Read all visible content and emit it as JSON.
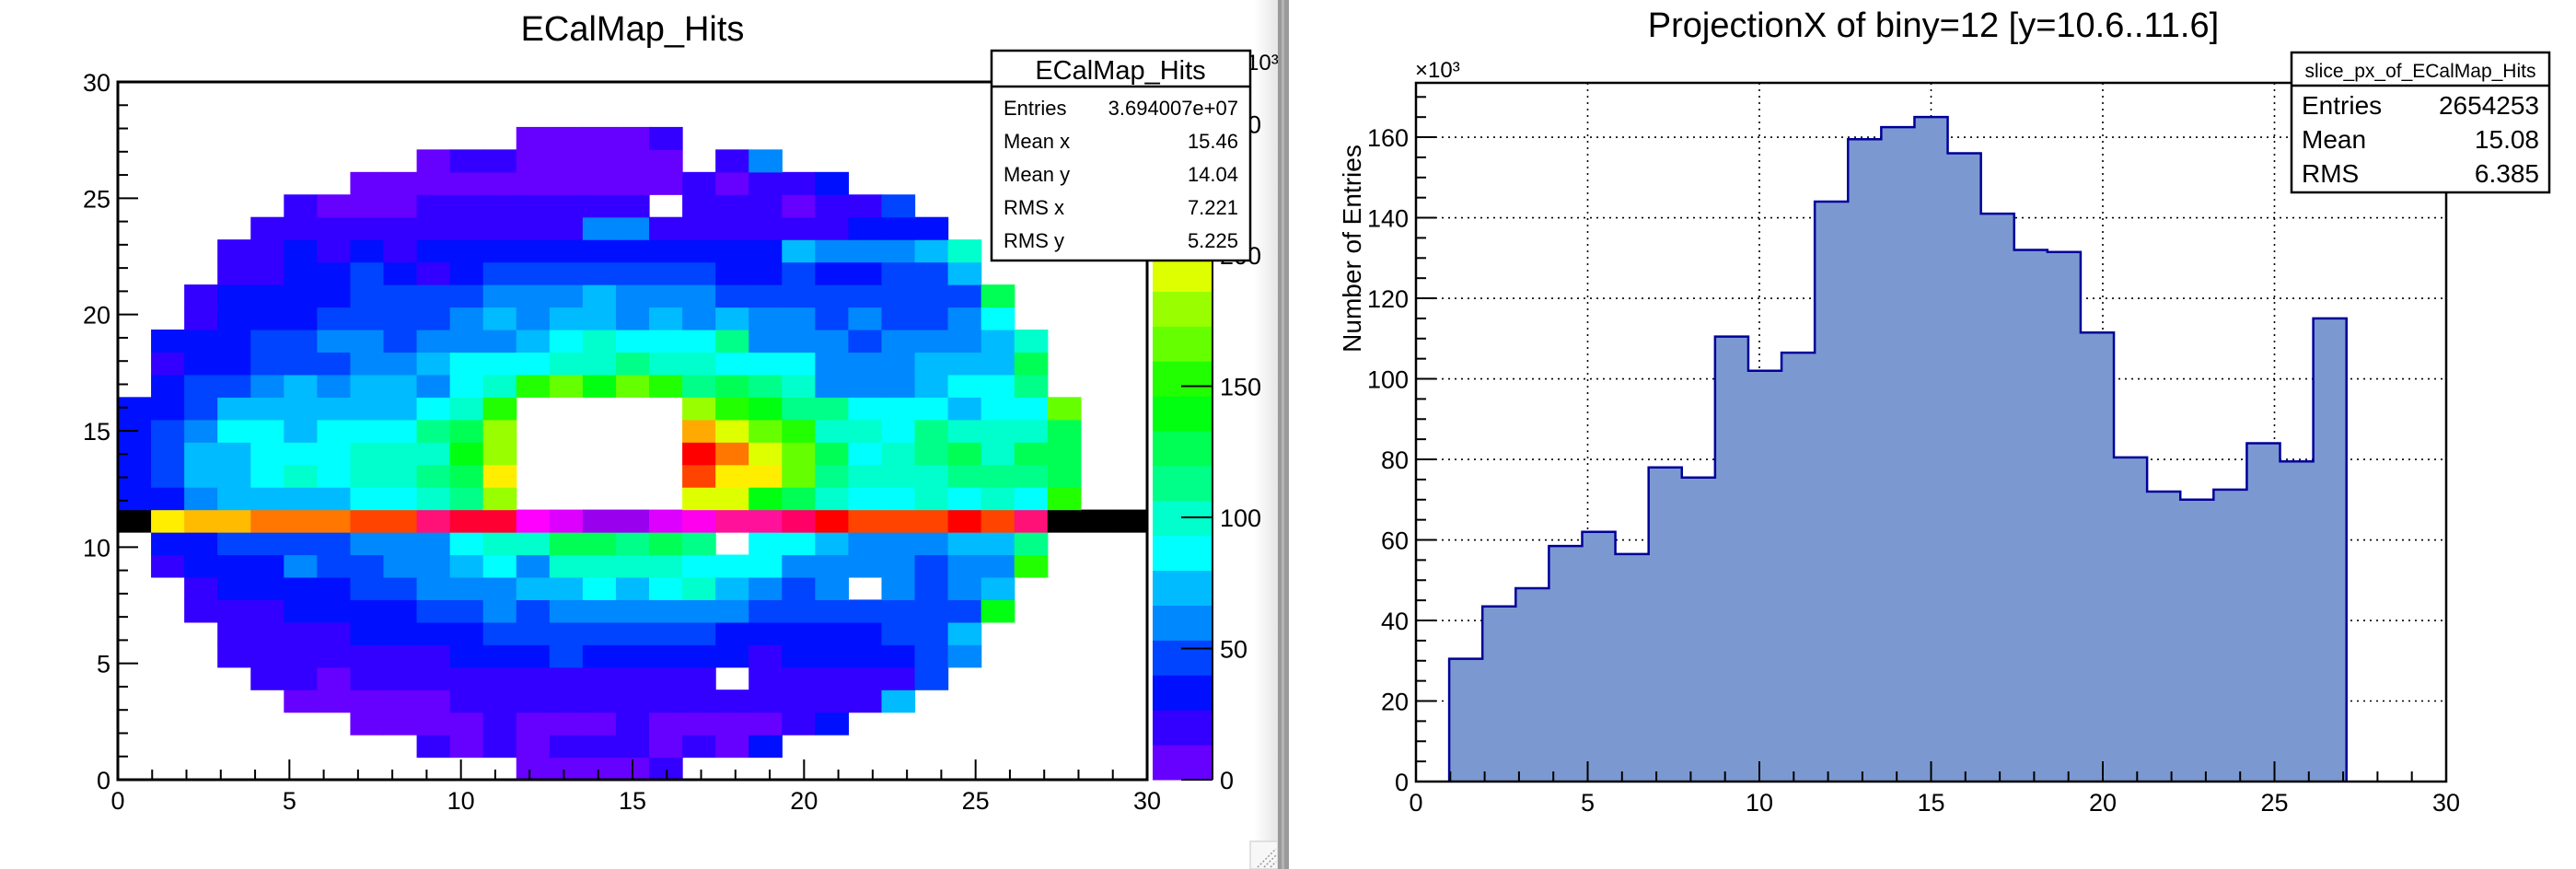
{
  "chart_data": [
    {
      "type": "heatmap",
      "title": "ECalMap_Hits",
      "xlim": [
        0,
        30
      ],
      "ylim": [
        0,
        30
      ],
      "nbins_x": 31,
      "nbins_y": 31,
      "x_tick_labels": [
        "0",
        "5",
        "10",
        "15",
        "20",
        "25",
        "30"
      ],
      "y_tick_labels": [
        "0",
        "5",
        "10",
        "15",
        "20",
        "25",
        "30"
      ],
      "z_unit_label": "×10³",
      "z_range_thousands": [
        0,
        266
      ],
      "z_tick_labels": [
        "0",
        "50",
        "100",
        "150",
        "200",
        "250"
      ],
      "z_ticks": [
        0,
        50,
        100,
        150,
        200,
        250
      ],
      "palette": [
        "#6600ff",
        "#3300ff",
        "#0010ff",
        "#0044ff",
        "#0088ff",
        "#00bbff",
        "#00ffff",
        "#00ffcc",
        "#00ff88",
        "#00ff55",
        "#00ff11",
        "#22ff00",
        "#66ff00",
        "#99ff00",
        "#ddff00",
        "#ffee00",
        "#ffaa00",
        "#ff7700",
        "#ff4400",
        "#ff0000"
      ],
      "highlight_row_index": 11,
      "highlight_row_colors": [
        "#000000",
        "#ffee00",
        "#ffbb00",
        "#ffbb00",
        "#ff7700",
        "#ff7700",
        "#ff7700",
        "#ff4400",
        "#ff4400",
        "#ff1177",
        "#ff0033",
        "#ff0033",
        "#ff00ff",
        "#dd00ff",
        "#9900ee",
        "#9900ee",
        "#dd00ff",
        "#ff00ee",
        "#ff1199",
        "#ff1199",
        "#ff0066",
        "#ff0000",
        "#ff4400",
        "#ff4400",
        "#ff4400",
        "#ff0000",
        "#ff4400",
        "#ff1177",
        "#000000",
        "#000000",
        "#000000"
      ],
      "z_thousands_rows_bottom_to_top": [
        [
          0,
          0,
          0,
          0,
          0,
          0,
          0,
          0,
          0,
          0,
          0,
          0,
          7,
          7,
          7,
          7,
          20,
          0,
          0,
          0,
          0,
          0,
          0,
          0,
          0,
          0,
          0,
          0,
          0,
          0,
          0
        ],
        [
          0,
          0,
          0,
          0,
          0,
          0,
          0,
          0,
          0,
          20,
          7,
          20,
          7,
          20,
          20,
          20,
          7,
          20,
          7,
          33,
          0,
          0,
          0,
          0,
          0,
          0,
          0,
          0,
          0,
          0,
          0
        ],
        [
          0,
          0,
          0,
          0,
          0,
          0,
          0,
          7,
          7,
          7,
          7,
          20,
          7,
          7,
          7,
          20,
          7,
          7,
          7,
          7,
          20,
          33,
          0,
          0,
          0,
          0,
          0,
          0,
          0,
          0,
          0
        ],
        [
          0,
          0,
          0,
          0,
          0,
          7,
          7,
          7,
          7,
          7,
          20,
          20,
          20,
          20,
          20,
          20,
          20,
          20,
          20,
          20,
          20,
          20,
          20,
          73,
          0,
          0,
          0,
          0,
          0,
          0,
          0
        ],
        [
          0,
          0,
          0,
          0,
          20,
          20,
          7,
          20,
          20,
          20,
          20,
          20,
          20,
          20,
          20,
          20,
          20,
          20,
          0,
          20,
          20,
          20,
          20,
          20,
          47,
          0,
          0,
          0,
          0,
          0,
          0
        ],
        [
          0,
          0,
          0,
          20,
          20,
          20,
          20,
          20,
          20,
          20,
          33,
          33,
          33,
          47,
          33,
          33,
          33,
          33,
          33,
          20,
          33,
          33,
          33,
          33,
          47,
          60,
          0,
          0,
          0,
          0,
          0
        ],
        [
          0,
          0,
          0,
          20,
          20,
          20,
          20,
          33,
          33,
          33,
          33,
          47,
          47,
          47,
          47,
          47,
          47,
          47,
          33,
          33,
          33,
          33,
          33,
          47,
          47,
          73,
          0,
          0,
          0,
          0,
          0
        ],
        [
          0,
          0,
          20,
          20,
          20,
          33,
          33,
          33,
          33,
          47,
          47,
          60,
          47,
          60,
          60,
          60,
          60,
          60,
          60,
          47,
          47,
          47,
          47,
          47,
          47,
          47,
          140,
          0,
          0,
          0,
          0
        ],
        [
          0,
          0,
          20,
          33,
          33,
          33,
          33,
          47,
          47,
          60,
          60,
          60,
          73,
          73,
          87,
          73,
          87,
          100,
          73,
          60,
          47,
          60,
          0,
          60,
          47,
          60,
          73,
          0,
          0,
          0,
          0
        ],
        [
          0,
          20,
          33,
          33,
          33,
          60,
          47,
          47,
          60,
          60,
          73,
          87,
          60,
          100,
          100,
          100,
          100,
          87,
          87,
          87,
          60,
          60,
          60,
          60,
          47,
          60,
          60,
          154,
          0,
          0,
          0
        ],
        [
          0,
          33,
          33,
          47,
          47,
          47,
          47,
          60,
          60,
          60,
          87,
          100,
          100,
          127,
          127,
          113,
          127,
          113,
          0,
          87,
          87,
          73,
          60,
          60,
          60,
          73,
          73,
          113,
          0,
          0,
          0
        ],
        [
          0,
          30.5,
          43.5,
          48,
          58.5,
          62,
          56.5,
          78,
          75.5,
          110.5,
          102,
          106.5,
          144,
          159.5,
          162.5,
          165,
          156,
          141,
          132,
          131.5,
          111.5,
          80.5,
          72,
          70,
          72.5,
          84,
          79.5,
          115,
          0,
          0,
          0
        ],
        [
          33,
          33,
          60,
          73,
          73,
          73,
          73,
          87,
          87,
          100,
          113,
          180,
          0,
          0,
          0,
          0,
          0,
          194,
          194,
          140,
          127,
          100,
          87,
          87,
          100,
          87,
          100,
          87,
          154,
          0,
          0
        ],
        [
          33,
          47,
          73,
          73,
          87,
          100,
          87,
          100,
          100,
          113,
          127,
          207,
          0,
          0,
          0,
          0,
          0,
          247,
          207,
          207,
          167,
          113,
          100,
          100,
          100,
          113,
          113,
          113,
          127,
          0,
          0
        ],
        [
          33,
          47,
          73,
          73,
          87,
          87,
          87,
          100,
          100,
          100,
          140,
          180,
          0,
          0,
          0,
          0,
          0,
          260,
          234,
          194,
          167,
          127,
          87,
          100,
          113,
          127,
          100,
          127,
          127,
          0,
          0
        ],
        [
          33,
          47,
          60,
          87,
          87,
          73,
          87,
          87,
          87,
          113,
          127,
          180,
          0,
          0,
          0,
          0,
          0,
          220,
          194,
          167,
          154,
          100,
          100,
          87,
          113,
          100,
          100,
          100,
          127,
          0,
          0
        ],
        [
          33,
          33,
          47,
          73,
          73,
          73,
          73,
          73,
          73,
          87,
          100,
          154,
          0,
          0,
          0,
          0,
          0,
          180,
          154,
          140,
          113,
          113,
          87,
          87,
          87,
          73,
          87,
          87,
          167,
          0,
          0
        ],
        [
          0,
          33,
          47,
          47,
          60,
          73,
          60,
          73,
          73,
          60,
          87,
          100,
          154,
          167,
          140,
          167,
          154,
          113,
          127,
          113,
          100,
          60,
          60,
          60,
          73,
          87,
          87,
          113,
          0,
          0,
          0
        ],
        [
          0,
          20,
          33,
          33,
          47,
          47,
          47,
          60,
          60,
          73,
          87,
          87,
          87,
          100,
          100,
          113,
          100,
          100,
          87,
          87,
          87,
          60,
          60,
          60,
          73,
          73,
          73,
          127,
          0,
          0,
          0
        ],
        [
          0,
          33,
          33,
          33,
          47,
          47,
          60,
          60,
          47,
          60,
          60,
          60,
          73,
          87,
          100,
          87,
          87,
          87,
          113,
          60,
          60,
          60,
          47,
          60,
          60,
          60,
          73,
          100,
          0,
          0,
          0
        ],
        [
          0,
          0,
          20,
          33,
          33,
          33,
          47,
          47,
          47,
          47,
          60,
          73,
          60,
          73,
          73,
          60,
          73,
          60,
          73,
          60,
          60,
          47,
          60,
          47,
          47,
          60,
          87,
          0,
          0,
          0,
          0
        ],
        [
          0,
          0,
          20,
          33,
          33,
          33,
          33,
          47,
          47,
          47,
          47,
          60,
          60,
          60,
          73,
          60,
          60,
          60,
          47,
          47,
          47,
          47,
          47,
          47,
          47,
          47,
          127,
          0,
          0,
          0,
          0
        ],
        [
          0,
          0,
          0,
          20,
          20,
          33,
          33,
          47,
          33,
          20,
          33,
          47,
          47,
          47,
          47,
          47,
          47,
          47,
          33,
          33,
          47,
          33,
          33,
          47,
          47,
          73,
          0,
          0,
          0,
          0,
          0
        ],
        [
          0,
          0,
          0,
          20,
          20,
          33,
          20,
          33,
          20,
          33,
          33,
          33,
          33,
          33,
          33,
          33,
          33,
          33,
          33,
          33,
          73,
          60,
          60,
          60,
          73,
          100,
          0,
          0,
          0,
          0,
          0
        ],
        [
          0,
          0,
          0,
          0,
          20,
          20,
          20,
          20,
          20,
          20,
          20,
          20,
          20,
          20,
          60,
          60,
          20,
          20,
          20,
          20,
          20,
          20,
          33,
          33,
          33,
          0,
          0,
          0,
          0,
          0,
          0
        ],
        [
          0,
          0,
          0,
          0,
          0,
          20,
          7,
          7,
          7,
          20,
          20,
          20,
          20,
          20,
          20,
          20,
          0,
          20,
          20,
          20,
          7,
          20,
          20,
          47,
          0,
          0,
          0,
          0,
          0,
          0,
          0
        ],
        [
          0,
          0,
          0,
          0,
          0,
          0,
          0,
          7,
          7,
          7,
          7,
          7,
          7,
          7,
          7,
          7,
          7,
          20,
          7,
          20,
          20,
          33,
          0,
          0,
          0,
          0,
          0,
          0,
          0,
          0,
          0
        ],
        [
          0,
          0,
          0,
          0,
          0,
          0,
          0,
          0,
          0,
          7,
          20,
          20,
          7,
          7,
          7,
          7,
          7,
          0,
          20,
          60,
          0,
          0,
          0,
          0,
          0,
          0,
          0,
          0,
          0,
          0,
          0
        ],
        [
          0,
          0,
          0,
          0,
          0,
          0,
          0,
          0,
          0,
          0,
          0,
          0,
          7,
          7,
          7,
          7,
          20,
          0,
          0,
          0,
          0,
          0,
          0,
          0,
          0,
          0,
          0,
          0,
          0,
          0,
          0
        ],
        [
          0,
          0,
          0,
          0,
          0,
          0,
          0,
          0,
          0,
          0,
          0,
          0,
          0,
          0,
          0,
          0,
          0,
          0,
          0,
          0,
          0,
          0,
          0,
          0,
          0,
          0,
          0,
          0,
          0,
          0,
          0
        ],
        [
          0,
          0,
          0,
          0,
          0,
          0,
          0,
          0,
          0,
          0,
          0,
          0,
          0,
          0,
          0,
          0,
          0,
          0,
          0,
          0,
          0,
          0,
          0,
          0,
          0,
          0,
          0,
          0,
          0,
          0,
          0
        ]
      ],
      "stats": {
        "name": "ECalMap_Hits",
        "rows": [
          {
            "label": "Entries",
            "value": "3.694007e+07"
          },
          {
            "label": "Mean x",
            "value": "15.46"
          },
          {
            "label": "Mean y",
            "value": "14.04"
          },
          {
            "label": "RMS x",
            "value": "7.221"
          },
          {
            "label": "RMS y",
            "value": "5.225"
          }
        ]
      }
    },
    {
      "type": "bar",
      "style": "histogram",
      "title": "ProjectionX of biny=12 [y=10.6..11.6]",
      "xlabel": "",
      "ylabel": "Number of Entries",
      "y_unit_label": "×10³",
      "xlim": [
        0,
        30
      ],
      "ylim_thousands": [
        0,
        173.5
      ],
      "nbins": 31,
      "grid": true,
      "x_tick_labels": [
        "0",
        "5",
        "10",
        "15",
        "20",
        "25",
        "30"
      ],
      "y_tick_labels": [
        "0",
        "20",
        "40",
        "60",
        "80",
        "100",
        "120",
        "140",
        "160"
      ],
      "first_filled_bin": 1,
      "values_thousands": [
        30.5,
        43.5,
        48,
        58.5,
        62,
        56.5,
        78,
        75.5,
        110.5,
        102,
        106.5,
        144,
        159.5,
        162.5,
        165,
        156,
        141,
        132,
        131.5,
        111.5,
        80.5,
        72,
        70,
        72.5,
        84,
        79.5,
        115
      ],
      "fill_color": "#7b99d0",
      "line_color": "#000099",
      "stats": {
        "name": "slice_px_of_ECalMap_Hits",
        "rows": [
          {
            "label": "Entries",
            "value": "2654253"
          },
          {
            "label": "Mean",
            "value": "15.08"
          },
          {
            "label": "RMS",
            "value": "6.385"
          }
        ]
      }
    }
  ]
}
